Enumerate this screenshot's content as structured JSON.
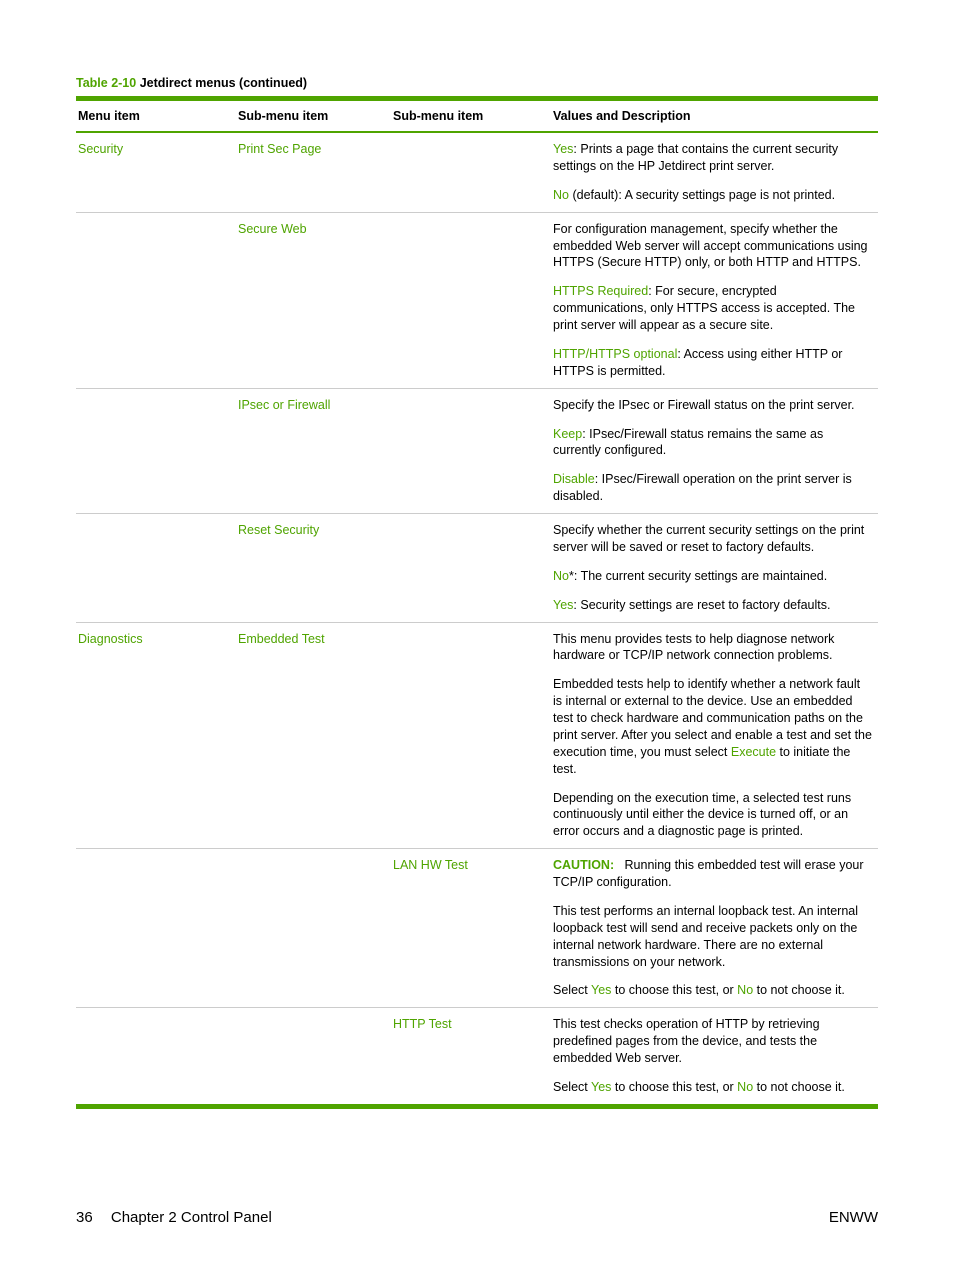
{
  "colors": {
    "accent": "#4fa400",
    "text": "#000000",
    "rule_light": "#cccccc",
    "background": "#ffffff"
  },
  "caption": {
    "prefix": "Table 2-10",
    "suffix": "  Jetdirect menus (continued)"
  },
  "headers": {
    "c1": "Menu item",
    "c2": "Sub-menu item",
    "c3": "Sub-menu item",
    "c4": "Values and Description"
  },
  "rows": {
    "security": "Security",
    "print_sec_page": "Print Sec Page",
    "psp_yes_prefix": "Yes",
    "psp_yes_rest": ": Prints a page that contains the current security settings on the HP Jetdirect print server.",
    "psp_no_prefix": "No",
    "psp_no_rest": " (default): A security settings page is not printed.",
    "secure_web": "Secure Web",
    "sw_intro": "For configuration management, specify whether the embedded Web server will accept communications using HTTPS (Secure HTTP) only, or both HTTP and HTTPS.",
    "sw_req_prefix": "HTTPS Required",
    "sw_req_rest": ": For secure, encrypted communications, only HTTPS access is accepted. The print server will appear as a secure site.",
    "sw_opt_prefix": "HTTP/HTTPS optional",
    "sw_opt_rest": ": Access using either HTTP or HTTPS is permitted.",
    "ipsec": "IPsec or Firewall",
    "ipsec_intro": "Specify the IPsec or Firewall status on the print server.",
    "ipsec_keep_prefix": "Keep",
    "ipsec_keep_rest": ": IPsec/Firewall status remains the same as currently configured.",
    "ipsec_dis_prefix": "Disable",
    "ipsec_dis_rest": ": IPsec/Firewall operation on the print server is disabled.",
    "reset_sec": "Reset Security",
    "rs_intro": "Specify whether the current security settings on the print server will be saved or reset to factory defaults.",
    "rs_no_prefix": "No",
    "rs_no_star": "*",
    "rs_no_rest": ": The current security settings are maintained.",
    "rs_yes_prefix": "Yes",
    "rs_yes_rest": ": Security settings are reset to factory defaults.",
    "diagnostics": "Diagnostics",
    "embedded_test": "Embedded Test",
    "et_intro": "This menu provides tests to help diagnose network hardware or TCP/IP network connection problems.",
    "et_p2a": "Embedded tests help to identify whether a network fault is internal or external to the device. Use an embedded test to check hardware and communication paths on the print server. After you select and enable a test and set the execution time, you must select ",
    "et_p2_exec": "Execute",
    "et_p2b": " to initiate the test.",
    "et_p3": "Depending on the execution time, a selected test runs continuously until either the device is turned off, or an error occurs and a diagnostic page is printed.",
    "lan_hw": "LAN HW Test",
    "lan_caution": "CAUTION:",
    "lan_caution_rest": "Running this embedded test will erase your TCP/IP configuration.",
    "lan_p2": "This test performs an internal loopback test. An internal loopback test will send and receive packets only on the internal network hardware. There are no external transmissions on your network.",
    "lan_p3a": "Select ",
    "lan_p3_yes": "Yes",
    "lan_p3b": " to choose this test, or ",
    "lan_p3_no": "No",
    "lan_p3c": " to not choose it.",
    "http_test": "HTTP Test",
    "http_p1": "This test checks operation of HTTP by retrieving predefined pages from the device, and tests the embedded Web server.",
    "http_p2a": "Select ",
    "http_p2_yes": "Yes",
    "http_p2b": " to choose this test, or ",
    "http_p2_no": "No",
    "http_p2c": " to not choose it."
  },
  "footer": {
    "page_no": "36",
    "chapter": "Chapter 2   Control Panel",
    "right": "ENWW"
  }
}
